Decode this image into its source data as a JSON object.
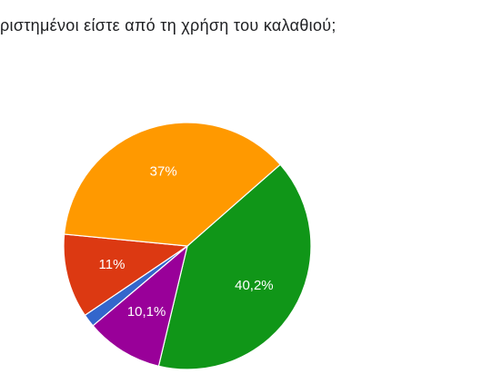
{
  "question": "ριστημένοι είστε από τη χρήση του καλαθιού;",
  "chart_data": {
    "type": "pie",
    "title": "ριστημένοι είστε από τη χρήση του καλαθιού;",
    "slices": [
      {
        "label": "40,2%",
        "value": 40.2,
        "color": "#109618"
      },
      {
        "label": "10,1%",
        "value": 10.1,
        "color": "#990099"
      },
      {
        "label": "",
        "value": 1.7,
        "color": "#3366cc"
      },
      {
        "label": "11%",
        "value": 11.0,
        "color": "#dc3912"
      },
      {
        "label": "37%",
        "value": 37.0,
        "color": "#ff9900"
      }
    ],
    "start_direction": "right-of-top, clockwise",
    "legend": "none visible"
  }
}
